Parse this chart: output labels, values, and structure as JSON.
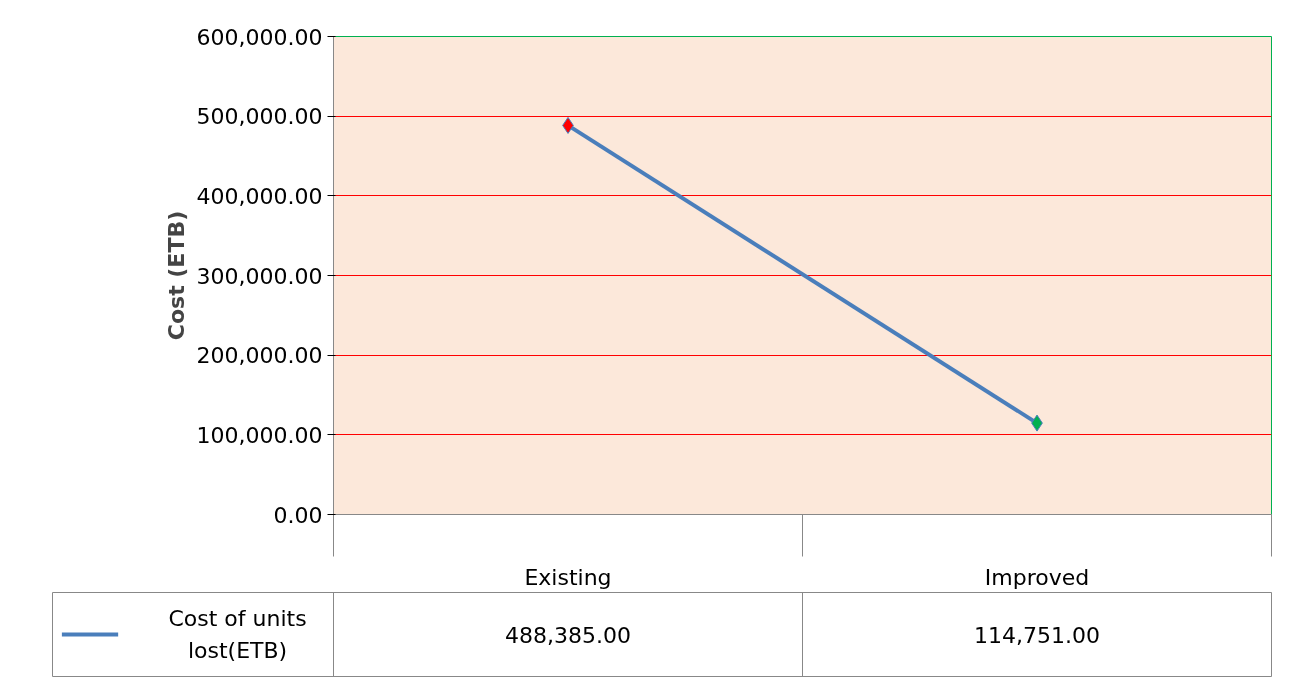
{
  "chart_data": {
    "type": "line",
    "ylabel": "Cost (ETB)",
    "categories": [
      "Existing",
      "Improved"
    ],
    "series": [
      {
        "name": "Cost of units lost(ETB)",
        "color": "#4a7ebb",
        "colors": [
          "#ff0000",
          "#00b050"
        ],
        "values": [
          488385,
          114751
        ],
        "value_labels": [
          "488,385.00",
          "114,751.00"
        ]
      }
    ],
    "ylim": [
      0,
      600000
    ],
    "yticks": [
      {
        "value": 0,
        "label": "0.00"
      },
      {
        "value": 100000,
        "label": "100,000.00"
      },
      {
        "value": 200000,
        "label": "200,000.00"
      },
      {
        "value": 300000,
        "label": "300,000.00"
      },
      {
        "value": 400000,
        "label": "400,000.00"
      },
      {
        "value": 500000,
        "label": "500,000.00"
      },
      {
        "value": 600000,
        "label": "600,000.00"
      }
    ],
    "grid": "y",
    "legend": "bottom",
    "marker": "diamond",
    "line_style": "solid"
  }
}
